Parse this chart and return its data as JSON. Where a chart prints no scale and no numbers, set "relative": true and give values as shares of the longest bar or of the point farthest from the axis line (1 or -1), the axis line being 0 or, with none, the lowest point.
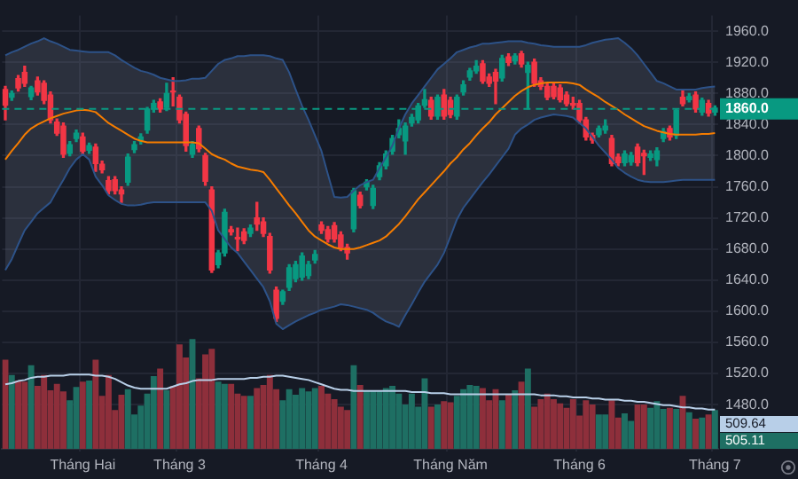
{
  "chart_data": [
    {
      "type": "candlestick",
      "categories": [
        null,
        null,
        null,
        null,
        null,
        null,
        null,
        null,
        null,
        null,
        null,
        null,
        "Tháng Hai",
        null,
        null,
        null,
        null,
        null,
        null,
        null,
        null,
        null,
        null,
        null,
        null,
        null,
        null,
        "Tháng 3",
        null,
        null,
        null,
        null,
        null,
        null,
        null,
        null,
        null,
        null,
        null,
        null,
        null,
        null,
        null,
        null,
        null,
        null,
        null,
        null,
        null,
        "Tháng 4",
        null,
        null,
        null,
        null,
        null,
        null,
        null,
        null,
        null,
        null,
        null,
        null,
        null,
        null,
        null,
        null,
        null,
        null,
        null,
        "Tháng Năm",
        null,
        null,
        null,
        null,
        null,
        null,
        null,
        null,
        null,
        null,
        null,
        null,
        null,
        null,
        null,
        null,
        null,
        null,
        null,
        "Tháng 6",
        null,
        null,
        null,
        null,
        null,
        null,
        null,
        null,
        null,
        null,
        null,
        null,
        null,
        null,
        null,
        null,
        null,
        null,
        null,
        null,
        "Tháng 7"
      ],
      "ohlc": [
        [
          1885,
          1889,
          1846,
          1865
        ],
        [
          1875,
          1883,
          1871,
          1880
        ],
        [
          1899,
          1903,
          1883,
          1887
        ],
        [
          1907,
          1915,
          1889,
          1893
        ],
        [
          1876,
          1889,
          1872,
          1887
        ],
        [
          1896,
          1901,
          1878,
          1882
        ],
        [
          1893,
          1896,
          1867,
          1871
        ],
        [
          1878,
          1882,
          1842,
          1846
        ],
        [
          1843,
          1847,
          1826,
          1829
        ],
        [
          1838,
          1842,
          1798,
          1802
        ],
        [
          1803,
          1818,
          1800,
          1814
        ],
        [
          1822,
          1833,
          1818,
          1829
        ],
        [
          1824,
          1829,
          1802,
          1806
        ],
        [
          1807,
          1816,
          1803,
          1813
        ],
        [
          1811,
          1815,
          1780,
          1790
        ],
        [
          1789,
          1793,
          1778,
          1782
        ],
        [
          1768,
          1773,
          1751,
          1755
        ],
        [
          1769,
          1773,
          1751,
          1755
        ],
        [
          1756,
          1760,
          1740,
          1751
        ],
        [
          1766,
          1802,
          1762,
          1798
        ],
        [
          1808,
          1818,
          1804,
          1814
        ],
        [
          1819,
          1828,
          1815,
          1824
        ],
        [
          1833,
          1862,
          1829,
          1860
        ],
        [
          1860,
          1871,
          1856,
          1867
        ],
        [
          1869,
          1873,
          1856,
          1860
        ],
        [
          1862,
          1893,
          1858,
          1880
        ],
        [
          1883,
          1900,
          1864,
          1882
        ],
        [
          1875,
          1878,
          1842,
          1846
        ],
        [
          1853,
          1856,
          1806,
          1813
        ],
        [
          1802,
          1818,
          1798,
          1814
        ],
        [
          1835,
          1838,
          1805,
          1809
        ],
        [
          1800,
          1803,
          1762,
          1767
        ],
        [
          1756,
          1760,
          1650,
          1653
        ],
        [
          1660,
          1678,
          1656,
          1675
        ],
        [
          1675,
          1731,
          1671,
          1727
        ],
        [
          1705,
          1709,
          1698,
          1702
        ],
        [
          1695,
          1707,
          1678,
          1693
        ],
        [
          1702,
          1706,
          1687,
          1691
        ],
        [
          1700,
          1711,
          1696,
          1707
        ],
        [
          1720,
          1740,
          1704,
          1712
        ],
        [
          1715,
          1720,
          1696,
          1700
        ],
        [
          1696,
          1700,
          1649,
          1653
        ],
        [
          1627,
          1631,
          1587,
          1591
        ],
        [
          1613,
          1627,
          1609,
          1625
        ],
        [
          1631,
          1660,
          1627,
          1656
        ],
        [
          1642,
          1664,
          1638,
          1660
        ],
        [
          1644,
          1675,
          1640,
          1671
        ],
        [
          1646,
          1664,
          1642,
          1660
        ],
        [
          1666,
          1678,
          1662,
          1673
        ],
        [
          1711,
          1715,
          1700,
          1704
        ],
        [
          1705,
          1709,
          1689,
          1693
        ],
        [
          1710,
          1714,
          1689,
          1693
        ],
        [
          1698,
          1702,
          1678,
          1682
        ],
        [
          1682,
          1686,
          1667,
          1675
        ],
        [
          1706,
          1758,
          1702,
          1755
        ],
        [
          1749,
          1753,
          1733,
          1736
        ],
        [
          1760,
          1769,
          1756,
          1766
        ],
        [
          1736,
          1762,
          1732,
          1758
        ],
        [
          1773,
          1791,
          1769,
          1787
        ],
        [
          1787,
          1806,
          1783,
          1802
        ],
        [
          1806,
          1826,
          1802,
          1822
        ],
        [
          1827,
          1846,
          1823,
          1835
        ],
        [
          1819,
          1842,
          1802,
          1838
        ],
        [
          1842,
          1853,
          1838,
          1849
        ],
        [
          1846,
          1867,
          1842,
          1864
        ],
        [
          1865,
          1885,
          1862,
          1872
        ],
        [
          1871,
          1875,
          1847,
          1851
        ],
        [
          1851,
          1878,
          1847,
          1875
        ],
        [
          1878,
          1885,
          1847,
          1851
        ],
        [
          1871,
          1875,
          1849,
          1853
        ],
        [
          1851,
          1878,
          1847,
          1875
        ],
        [
          1882,
          1896,
          1878,
          1891
        ],
        [
          1901,
          1912,
          1897,
          1909
        ],
        [
          1909,
          1922,
          1906,
          1915
        ],
        [
          1918,
          1922,
          1893,
          1896
        ],
        [
          1901,
          1905,
          1889,
          1893
        ],
        [
          1907,
          1911,
          1867,
          1896
        ],
        [
          1900,
          1929,
          1896,
          1925
        ],
        [
          1927,
          1931,
          1916,
          1920
        ],
        [
          1922,
          1931,
          1918,
          1928
        ],
        [
          1931,
          1934,
          1914,
          1918
        ],
        [
          1907,
          1920,
          1860,
          1916
        ],
        [
          1920,
          1924,
          1889,
          1893
        ],
        [
          1896,
          1900,
          1885,
          1889
        ],
        [
          1889,
          1893,
          1872,
          1875
        ],
        [
          1889,
          1893,
          1873,
          1876
        ],
        [
          1887,
          1891,
          1869,
          1872
        ],
        [
          1878,
          1882,
          1864,
          1867
        ],
        [
          1867,
          1875,
          1860,
          1865
        ],
        [
          1867,
          1871,
          1842,
          1846
        ],
        [
          1846,
          1849,
          1820,
          1824
        ],
        [
          1826,
          1829,
          1816,
          1820
        ],
        [
          1827,
          1838,
          1824,
          1835
        ],
        [
          1833,
          1846,
          1829,
          1838
        ],
        [
          1822,
          1826,
          1787,
          1790
        ],
        [
          1798,
          1802,
          1787,
          1791
        ],
        [
          1791,
          1806,
          1787,
          1802
        ],
        [
          1792,
          1804,
          1788,
          1800
        ],
        [
          1811,
          1815,
          1787,
          1791
        ],
        [
          1803,
          1807,
          1776,
          1800
        ],
        [
          1798,
          1806,
          1794,
          1802
        ],
        [
          1795,
          1810,
          1787,
          1806
        ],
        [
          1822,
          1835,
          1818,
          1831
        ],
        [
          1835,
          1838,
          1820,
          1824
        ],
        [
          1826,
          1860,
          1822,
          1858
        ],
        [
          1875,
          1885,
          1864,
          1867
        ],
        [
          1872,
          1880,
          1869,
          1876
        ],
        [
          1878,
          1882,
          1856,
          1860
        ],
        [
          1856,
          1874,
          1852,
          1871
        ],
        [
          1867,
          1871,
          1851,
          1855
        ],
        [
          1856,
          1864,
          1852,
          1861
        ]
      ],
      "colors": [
        "#f23645",
        "#089981",
        "#f23645",
        "#f23645",
        "#089981",
        "#f23645",
        "#f23645",
        "#f23645",
        "#f23645",
        "#f23645",
        "#089981",
        "#089981",
        "#f23645",
        "#089981",
        "#f23645",
        "#f23645",
        "#f23645",
        "#f23645",
        "#f23645",
        "#089981",
        "#089981",
        "#089981",
        "#089981",
        "#089981",
        "#f23645",
        "#089981",
        "#f23645",
        "#f23645",
        "#f23645",
        "#089981",
        "#f23645",
        "#f23645",
        "#f23645",
        "#089981",
        "#089981",
        "#f23645",
        "#f23645",
        "#f23645",
        "#089981",
        "#f23645",
        "#f23645",
        "#f23645",
        "#f23645",
        "#089981",
        "#089981",
        "#089981",
        "#089981",
        "#089981",
        "#089981",
        "#f23645",
        "#f23645",
        "#f23645",
        "#f23645",
        "#f23645",
        "#089981",
        "#f23645",
        "#089981",
        "#089981",
        "#089981",
        "#089981",
        "#089981",
        "#089981",
        "#089981",
        "#089981",
        "#089981",
        "#089981",
        "#f23645",
        "#089981",
        "#f23645",
        "#f23645",
        "#089981",
        "#089981",
        "#089981",
        "#089981",
        "#f23645",
        "#f23645",
        "#f23645",
        "#089981",
        "#f23645",
        "#089981",
        "#f23645",
        "#089981",
        "#f23645",
        "#f23645",
        "#f23645",
        "#f23645",
        "#f23645",
        "#f23645",
        "#f23645",
        "#f23645",
        "#f23645",
        "#f23645",
        "#089981",
        "#089981",
        "#f23645",
        "#f23645",
        "#089981",
        "#089981",
        "#f23645",
        "#f23645",
        "#089981",
        "#089981",
        "#089981",
        "#f23645",
        "#089981",
        "#f23645",
        "#089981",
        "#f23645",
        "#089981",
        "#f23645",
        "#089981"
      ],
      "series": [
        {
          "type": "line",
          "color": "#2d5288",
          "values": [
            1929,
            1933,
            1936,
            1940,
            1944,
            1947,
            1951,
            1947,
            1944,
            1940,
            1936,
            1935,
            1934,
            1933,
            1933,
            1933,
            1933,
            1929,
            1923,
            1918,
            1913,
            1909,
            1907,
            1904,
            1900,
            1898,
            1896,
            1896,
            1897,
            1899,
            1899,
            1900,
            1909,
            1918,
            1923,
            1925,
            1928,
            1928,
            1929,
            1929,
            1929,
            1928,
            1925,
            1923,
            1907,
            1885,
            1864,
            1846,
            1826,
            1806,
            1776,
            1747,
            1746,
            1747,
            1755,
            1762,
            1766,
            1769,
            1784,
            1798,
            1813,
            1835,
            1853,
            1867,
            1878,
            1889,
            1900,
            1911,
            1918,
            1925,
            1933,
            1936,
            1939,
            1941,
            1944,
            1944,
            1945,
            1946,
            1947,
            1947,
            1947,
            1945,
            1944,
            1942,
            1941,
            1940,
            1940,
            1940,
            1940,
            1940,
            1942,
            1945,
            1947,
            1949,
            1950,
            1951,
            1945,
            1938,
            1929,
            1918,
            1907,
            1896,
            1893,
            1889,
            1885,
            1885,
            1885,
            1885,
            1887,
            1888,
            1889
          ]
        },
        {
          "type": "line",
          "color": "#2d5288",
          "values": [
            1653,
            1667,
            1686,
            1704,
            1715,
            1726,
            1733,
            1740,
            1755,
            1769,
            1784,
            1795,
            1802,
            1795,
            1773,
            1762,
            1749,
            1743,
            1738,
            1736,
            1736,
            1737,
            1739,
            1740,
            1740,
            1740,
            1740,
            1740,
            1740,
            1740,
            1740,
            1740,
            1729,
            1704,
            1693,
            1682,
            1675,
            1664,
            1653,
            1642,
            1631,
            1613,
            1584,
            1577,
            1582,
            1587,
            1591,
            1595,
            1598,
            1602,
            1604,
            1606,
            1609,
            1608,
            1606,
            1604,
            1602,
            1598,
            1592,
            1587,
            1584,
            1580,
            1595,
            1609,
            1624,
            1638,
            1649,
            1660,
            1675,
            1696,
            1718,
            1733,
            1744,
            1755,
            1766,
            1776,
            1787,
            1798,
            1809,
            1827,
            1835,
            1840,
            1846,
            1849,
            1851,
            1853,
            1852,
            1851,
            1849,
            1842,
            1835,
            1824,
            1813,
            1804,
            1795,
            1784,
            1778,
            1773,
            1769,
            1767,
            1766,
            1766,
            1766,
            1767,
            1768,
            1769,
            1769,
            1769,
            1769,
            1769,
            1769
          ]
        },
        {
          "type": "line",
          "color": "#f57c00",
          "values": [
            1795,
            1806,
            1816,
            1827,
            1835,
            1840,
            1844,
            1848,
            1851,
            1854,
            1856,
            1858,
            1859,
            1858,
            1856,
            1849,
            1842,
            1837,
            1832,
            1827,
            1822,
            1819,
            1817,
            1817,
            1817,
            1817,
            1817,
            1817,
            1817,
            1817,
            1816,
            1809,
            1802,
            1798,
            1795,
            1790,
            1786,
            1784,
            1782,
            1781,
            1779,
            1769,
            1758,
            1747,
            1736,
            1726,
            1715,
            1704,
            1696,
            1691,
            1686,
            1682,
            1680,
            1680,
            1680,
            1682,
            1685,
            1688,
            1691,
            1696,
            1704,
            1712,
            1722,
            1733,
            1744,
            1753,
            1762,
            1771,
            1780,
            1790,
            1798,
            1808,
            1816,
            1826,
            1835,
            1843,
            1853,
            1861,
            1869,
            1877,
            1883,
            1888,
            1891,
            1893,
            1894,
            1894,
            1894,
            1894,
            1893,
            1891,
            1885,
            1880,
            1875,
            1869,
            1864,
            1859,
            1853,
            1848,
            1843,
            1838,
            1835,
            1832,
            1830,
            1828,
            1827,
            1827,
            1827,
            1827,
            1828,
            1828,
            1829
          ],
          "lower": [
            1653,
            1667,
            1686,
            1704,
            1715,
            1726,
            1733,
            1740,
            1755,
            1769,
            1784,
            1795,
            1802,
            1795,
            1773,
            1762,
            1749,
            1743,
            1738,
            1736,
            1736,
            1737,
            1739,
            1740,
            1740,
            1740,
            1740,
            1740,
            1740,
            1740,
            1740,
            1740,
            1729,
            1704,
            1693,
            1682,
            1675,
            1664,
            1653,
            1642,
            1631,
            1613,
            1584,
            1577,
            1582,
            1587,
            1591,
            1595,
            1598,
            1602,
            1604,
            1606,
            1609,
            1608,
            1606,
            1604,
            1602,
            1598,
            1592,
            1587,
            1584,
            1580,
            1595,
            1609,
            1624,
            1638,
            1649,
            1660,
            1675,
            1696,
            1718,
            1733,
            1744,
            1755,
            1766,
            1776,
            1787,
            1798,
            1809,
            1827,
            1835,
            1840,
            1846,
            1849,
            1851,
            1853,
            1852,
            1851,
            1849,
            1842,
            1835,
            1824,
            1813,
            1804,
            1795,
            1784,
            1778,
            1773,
            1769,
            1767,
            1766,
            1766,
            1766,
            1767,
            1768,
            1769,
            1769,
            1769,
            1769,
            1769,
            1769
          ],
          "upper": [
            1929,
            1933,
            1936,
            1940,
            1944,
            1947,
            1951,
            1947,
            1944,
            1940,
            1936,
            1935,
            1934,
            1933,
            1933,
            1933,
            1933,
            1929,
            1923,
            1918,
            1913,
            1909,
            1907,
            1904,
            1900,
            1898,
            1896,
            1896,
            1897,
            1899,
            1899,
            1900,
            1909,
            1918,
            1923,
            1925,
            1928,
            1928,
            1929,
            1929,
            1929,
            1928,
            1925,
            1923,
            1907,
            1885,
            1864,
            1846,
            1826,
            1806,
            1776,
            1747,
            1746,
            1747,
            1755,
            1762,
            1766,
            1769,
            1784,
            1798,
            1813,
            1835,
            1853,
            1867,
            1878,
            1889,
            1900,
            1911,
            1918,
            1925,
            1933,
            1936,
            1939,
            1941,
            1944,
            1944,
            1945,
            1946,
            1947,
            1947,
            1947,
            1945,
            1944,
            1942,
            1941,
            1940,
            1940,
            1940,
            1940,
            1940,
            1942,
            1945,
            1947,
            1949,
            1950,
            1951,
            1945,
            1938,
            1929,
            1918,
            1907,
            1896,
            1893,
            1889,
            1885,
            1885,
            1885,
            1885,
            1887,
            1888,
            1889
          ]
        }
      ],
      "ylim": [
        1420,
        1980
      ],
      "yticks": [
        {
          "value": 1480,
          "label": "1480.0"
        },
        {
          "value": 1520,
          "label": "1520.0"
        },
        {
          "value": 1560,
          "label": "1560.0"
        },
        {
          "value": 1600,
          "label": "1600.0"
        },
        {
          "value": 1640,
          "label": "1640.0"
        },
        {
          "value": 1680,
          "label": "1680.0"
        },
        {
          "value": 1720,
          "label": "1720.0"
        },
        {
          "value": 1760,
          "label": "1760.0"
        },
        {
          "value": 1800,
          "label": "1800.0"
        },
        {
          "value": 1840,
          "label": "1840.0"
        },
        {
          "value": 1880,
          "label": "1880.0"
        },
        {
          "value": 1920,
          "label": "1920.0"
        },
        {
          "value": 1960,
          "label": "1960.0"
        }
      ],
      "grid": true,
      "ref_lines": [
        {
          "axis": "y",
          "value": 1860,
          "label": "1860.0",
          "color": "#089981",
          "line_style": "dashed"
        }
      ]
    },
    {
      "type": "bar",
      "relative": true,
      "categories": [
        null,
        null,
        null,
        null,
        null,
        null,
        null,
        null,
        null,
        null,
        null,
        null,
        null,
        null,
        null,
        null,
        null,
        null,
        null,
        null,
        null,
        null,
        null,
        null,
        null,
        null,
        null,
        null,
        null,
        null,
        null,
        null,
        null,
        null,
        null,
        null,
        null,
        null,
        null,
        null,
        null,
        null,
        null,
        null,
        null,
        null,
        null,
        null,
        null,
        null,
        null,
        null,
        null,
        null,
        null,
        null,
        null,
        null,
        null,
        null,
        null,
        null,
        null,
        null,
        null,
        null,
        null,
        null,
        null,
        null,
        null,
        null,
        null,
        null,
        null,
        null,
        null,
        null,
        null,
        null,
        null,
        null,
        null,
        null,
        null,
        null,
        null,
        null,
        null,
        null,
        null,
        null,
        null,
        null,
        null,
        null,
        null,
        null,
        null,
        null,
        null,
        null,
        null,
        null,
        null,
        null,
        null,
        null,
        null,
        null,
        null
      ],
      "series": [
        {
          "type": "bar",
          "values": [
            0.81,
            0.67,
            0.62,
            0.61,
            0.76,
            0.57,
            0.67,
            0.53,
            0.59,
            0.52,
            0.44,
            0.56,
            0.61,
            0.62,
            0.81,
            0.48,
            0.67,
            0.35,
            0.49,
            0.54,
            0.31,
            0.39,
            0.5,
            0.66,
            0.73,
            0.53,
            0.57,
            0.95,
            0.83,
            1,
            0.64,
            0.86,
            0.91,
            0.61,
            0.59,
            0.59,
            0.5,
            0.48,
            0.48,
            0.55,
            0.58,
            0.67,
            0.54,
            0.44,
            0.54,
            0.49,
            0.55,
            0.52,
            0.55,
            0.57,
            0.5,
            0.45,
            0.38,
            0.35,
            0.76,
            0.58,
            0.53,
            0.53,
            0.53,
            0.55,
            0.57,
            0.5,
            0.4,
            0.5,
            0.38,
            0.64,
            0.38,
            0.4,
            0.43,
            0.42,
            0.48,
            0.54,
            0.58,
            0.57,
            0.55,
            0.44,
            0.54,
            0.44,
            0.49,
            0.53,
            0.61,
            0.73,
            0.38,
            0.45,
            0.5,
            0.45,
            0.41,
            0.37,
            0.45,
            0.3,
            0.44,
            0.4,
            0.31,
            0.31,
            0.44,
            0.28,
            0.32,
            0.25,
            0.4,
            0.4,
            0.37,
            0.43,
            0.36,
            0.37,
            0.36,
            0.48,
            0.33,
            0.27,
            0.28,
            0.31,
            0.35
          ],
          "colors": [
            "#8e2f3b",
            "#1e6f63",
            "#8e2f3b",
            "#8e2f3b",
            "#1e6f63",
            "#8e2f3b",
            "#8e2f3b",
            "#8e2f3b",
            "#8e2f3b",
            "#8e2f3b",
            "#1e6f63",
            "#1e6f63",
            "#8e2f3b",
            "#1e6f63",
            "#8e2f3b",
            "#8e2f3b",
            "#8e2f3b",
            "#8e2f3b",
            "#8e2f3b",
            "#1e6f63",
            "#1e6f63",
            "#1e6f63",
            "#1e6f63",
            "#1e6f63",
            "#8e2f3b",
            "#1e6f63",
            "#8e2f3b",
            "#8e2f3b",
            "#8e2f3b",
            "#1e6f63",
            "#8e2f3b",
            "#8e2f3b",
            "#8e2f3b",
            "#1e6f63",
            "#1e6f63",
            "#8e2f3b",
            "#8e2f3b",
            "#8e2f3b",
            "#1e6f63",
            "#8e2f3b",
            "#8e2f3b",
            "#8e2f3b",
            "#8e2f3b",
            "#1e6f63",
            "#1e6f63",
            "#1e6f63",
            "#1e6f63",
            "#1e6f63",
            "#1e6f63",
            "#8e2f3b",
            "#8e2f3b",
            "#8e2f3b",
            "#8e2f3b",
            "#8e2f3b",
            "#1e6f63",
            "#8e2f3b",
            "#1e6f63",
            "#1e6f63",
            "#1e6f63",
            "#1e6f63",
            "#1e6f63",
            "#1e6f63",
            "#1e6f63",
            "#1e6f63",
            "#1e6f63",
            "#1e6f63",
            "#8e2f3b",
            "#1e6f63",
            "#8e2f3b",
            "#8e2f3b",
            "#1e6f63",
            "#1e6f63",
            "#1e6f63",
            "#1e6f63",
            "#8e2f3b",
            "#8e2f3b",
            "#8e2f3b",
            "#1e6f63",
            "#8e2f3b",
            "#1e6f63",
            "#8e2f3b",
            "#1e6f63",
            "#8e2f3b",
            "#8e2f3b",
            "#8e2f3b",
            "#8e2f3b",
            "#8e2f3b",
            "#8e2f3b",
            "#8e2f3b",
            "#8e2f3b",
            "#8e2f3b",
            "#8e2f3b",
            "#1e6f63",
            "#1e6f63",
            "#8e2f3b",
            "#8e2f3b",
            "#1e6f63",
            "#1e6f63",
            "#8e2f3b",
            "#8e2f3b",
            "#1e6f63",
            "#1e6f63",
            "#1e6f63",
            "#8e2f3b",
            "#1e6f63",
            "#8e2f3b",
            "#1e6f63",
            "#8e2f3b",
            "#1e6f63",
            "#8e2f3b",
            "#1e6f63"
          ]
        },
        {
          "type": "line",
          "color": "#b8cfe8",
          "values": [
            0.59,
            0.6,
            0.62,
            0.63,
            0.65,
            0.66,
            0.66,
            0.67,
            0.67,
            0.67,
            0.68,
            0.68,
            0.68,
            0.68,
            0.67,
            0.67,
            0.66,
            0.64,
            0.61,
            0.58,
            0.56,
            0.55,
            0.55,
            0.55,
            0.55,
            0.55,
            0.57,
            0.59,
            0.6,
            0.62,
            0.63,
            0.63,
            0.63,
            0.64,
            0.64,
            0.64,
            0.64,
            0.64,
            0.65,
            0.65,
            0.66,
            0.66,
            0.67,
            0.67,
            0.66,
            0.65,
            0.64,
            0.63,
            0.61,
            0.59,
            0.57,
            0.55,
            0.54,
            0.54,
            0.53,
            0.53,
            0.53,
            0.53,
            0.53,
            0.53,
            0.53,
            0.53,
            0.53,
            0.52,
            0.52,
            0.52,
            0.51,
            0.51,
            0.51,
            0.5,
            0.5,
            0.5,
            0.5,
            0.5,
            0.5,
            0.5,
            0.5,
            0.5,
            0.5,
            0.5,
            0.5,
            0.5,
            0.5,
            0.49,
            0.49,
            0.49,
            0.48,
            0.48,
            0.47,
            0.47,
            0.47,
            0.46,
            0.46,
            0.45,
            0.45,
            0.45,
            0.44,
            0.44,
            0.43,
            0.43,
            0.42,
            0.41,
            0.4,
            0.4,
            0.39,
            0.38,
            0.38,
            0.37,
            0.37,
            0.36,
            0.36
          ]
        }
      ],
      "annotations": [
        "509.64",
        "505.11"
      ]
    }
  ]
}
